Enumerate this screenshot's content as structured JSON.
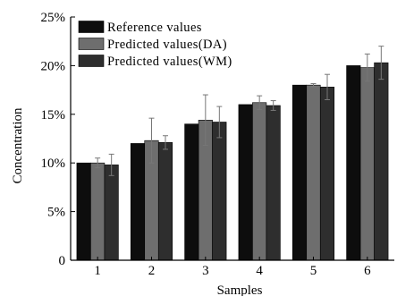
{
  "chart_data": {
    "type": "bar",
    "categories": [
      "1",
      "2",
      "3",
      "4",
      "5",
      "6"
    ],
    "xlabel": "Samples",
    "ylabel": "Concentration",
    "ylim": [
      0,
      25
    ],
    "yticks": [
      0,
      5,
      10,
      15,
      20,
      25
    ],
    "ytick_labels": [
      "0",
      "5%",
      "10%",
      "15%",
      "20%",
      "25%"
    ],
    "grid": false,
    "legend_position": "top-left",
    "series": [
      {
        "name": "Reference values",
        "color": "#0d0d0d",
        "values": [
          10.0,
          12.0,
          14.0,
          16.0,
          18.0,
          20.0
        ],
        "errors": [
          0,
          0,
          0,
          0,
          0,
          0
        ]
      },
      {
        "name": "Predicted values(DA)",
        "color": "#6e6e6e",
        "values": [
          10.0,
          12.3,
          14.4,
          16.2,
          18.0,
          19.8
        ],
        "errors": [
          0.5,
          2.3,
          2.6,
          0.7,
          0.15,
          1.4
        ]
      },
      {
        "name": "Predicted values(WM)",
        "color": "#2e2e2e",
        "values": [
          9.8,
          12.1,
          14.2,
          15.9,
          17.8,
          20.3
        ],
        "errors": [
          1.1,
          0.7,
          1.6,
          0.5,
          1.3,
          1.7
        ]
      }
    ]
  }
}
